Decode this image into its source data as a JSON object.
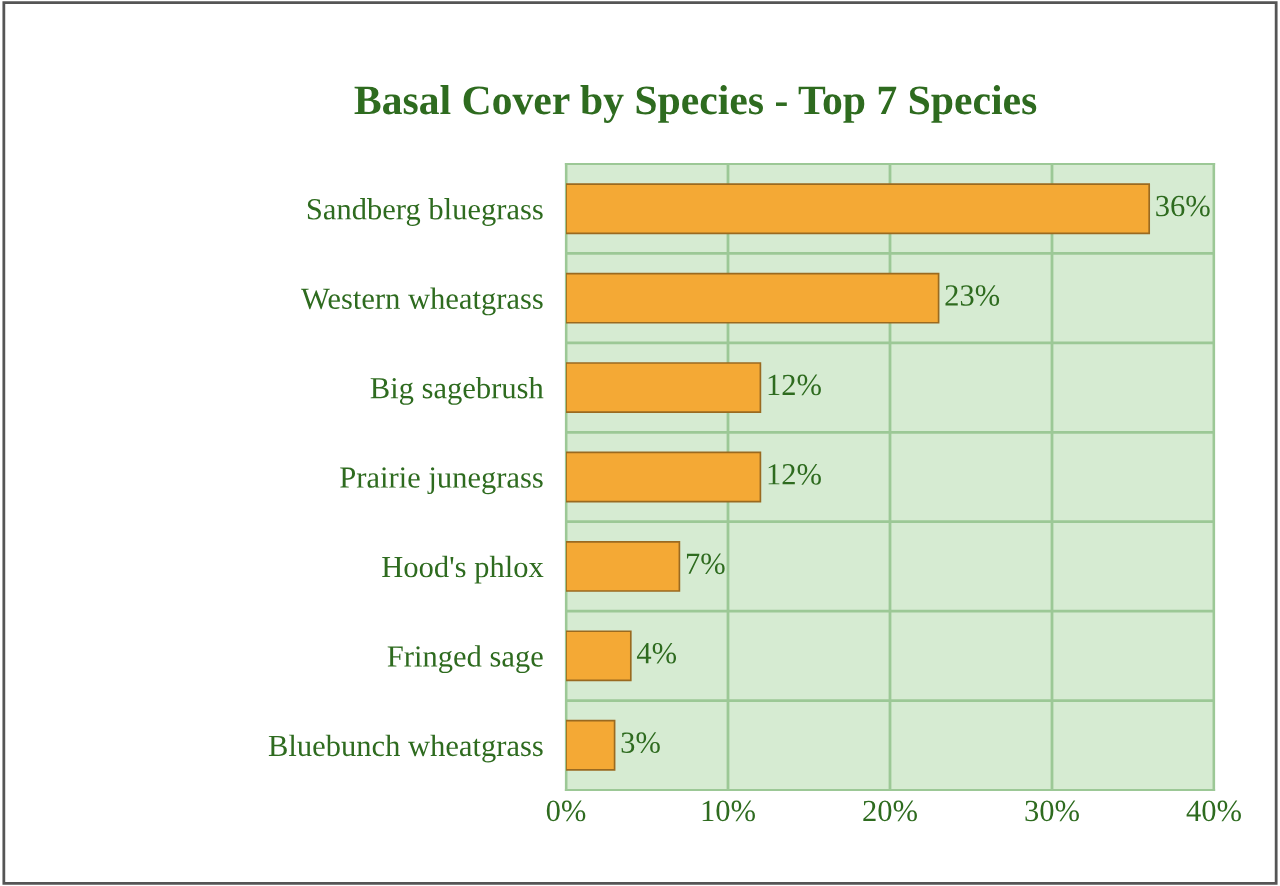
{
  "chart_data": {
    "type": "bar",
    "orientation": "horizontal",
    "title": "Basal Cover by Species - Top 7 Species",
    "categories": [
      "Sandberg bluegrass",
      "Western wheatgrass",
      "Big sagebrush",
      "Prairie junegrass",
      "Hood's phlox",
      "Fringed sage",
      "Bluebunch wheatgrass"
    ],
    "values": [
      36,
      23,
      12,
      12,
      7,
      4,
      3
    ],
    "value_labels": [
      "36%",
      "23%",
      "12%",
      "12%",
      "7%",
      "4%",
      "3%"
    ],
    "color": "#f4a935",
    "xlim": [
      0,
      40
    ],
    "xticks": [
      {
        "value": 0,
        "label": "0%"
      },
      {
        "value": 10,
        "label": "10%"
      },
      {
        "value": 20,
        "label": "20%"
      },
      {
        "value": 30,
        "label": "30%"
      },
      {
        "value": 40,
        "label": "40%"
      }
    ],
    "grid": true
  }
}
